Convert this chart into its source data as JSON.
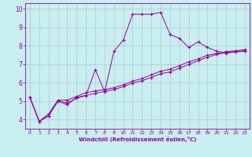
{
  "title": "",
  "xlabel": "Windchill (Refroidissement éolien,°C)",
  "ylabel": "",
  "background_color": "#c8eef0",
  "line_color": "#990099",
  "grid_color": "#b0c8c8",
  "xlim": [
    -0.5,
    23.5
  ],
  "ylim": [
    3.5,
    10.3
  ],
  "xticks": [
    0,
    1,
    2,
    3,
    4,
    5,
    6,
    7,
    8,
    9,
    10,
    11,
    12,
    13,
    14,
    15,
    16,
    17,
    18,
    19,
    20,
    21,
    22,
    23
  ],
  "yticks": [
    4,
    5,
    6,
    7,
    8,
    9,
    10
  ],
  "series": [
    {
      "x": [
        0,
        1,
        2,
        3,
        4,
        5,
        6,
        7,
        8,
        9,
        10,
        11,
        12,
        13,
        14,
        15,
        16,
        17,
        18,
        19,
        20,
        21,
        22,
        23
      ],
      "y": [
        5.2,
        3.9,
        4.2,
        5.0,
        4.8,
        5.2,
        5.3,
        6.7,
        5.5,
        7.7,
        8.3,
        9.7,
        9.7,
        9.7,
        9.8,
        8.6,
        8.4,
        7.9,
        8.2,
        7.9,
        7.7,
        7.6,
        7.65,
        7.7
      ]
    },
    {
      "x": [
        0,
        1,
        2,
        3,
        4,
        5,
        6,
        7,
        8,
        9,
        10,
        11,
        12,
        13,
        14,
        15,
        16,
        17,
        18,
        19,
        20,
        21,
        22,
        23
      ],
      "y": [
        5.2,
        3.9,
        4.2,
        5.0,
        4.9,
        5.15,
        5.3,
        5.42,
        5.52,
        5.62,
        5.78,
        5.98,
        6.1,
        6.28,
        6.48,
        6.58,
        6.78,
        6.98,
        7.18,
        7.38,
        7.52,
        7.62,
        7.68,
        7.72
      ]
    },
    {
      "x": [
        0,
        1,
        2,
        3,
        4,
        5,
        6,
        7,
        8,
        9,
        10,
        11,
        12,
        13,
        14,
        15,
        16,
        17,
        18,
        19,
        20,
        21,
        22,
        23
      ],
      "y": [
        5.2,
        3.9,
        4.3,
        5.05,
        5.05,
        5.25,
        5.45,
        5.55,
        5.62,
        5.72,
        5.88,
        6.08,
        6.22,
        6.42,
        6.62,
        6.72,
        6.92,
        7.12,
        7.28,
        7.48,
        7.58,
        7.68,
        7.72,
        7.78
      ]
    }
  ]
}
